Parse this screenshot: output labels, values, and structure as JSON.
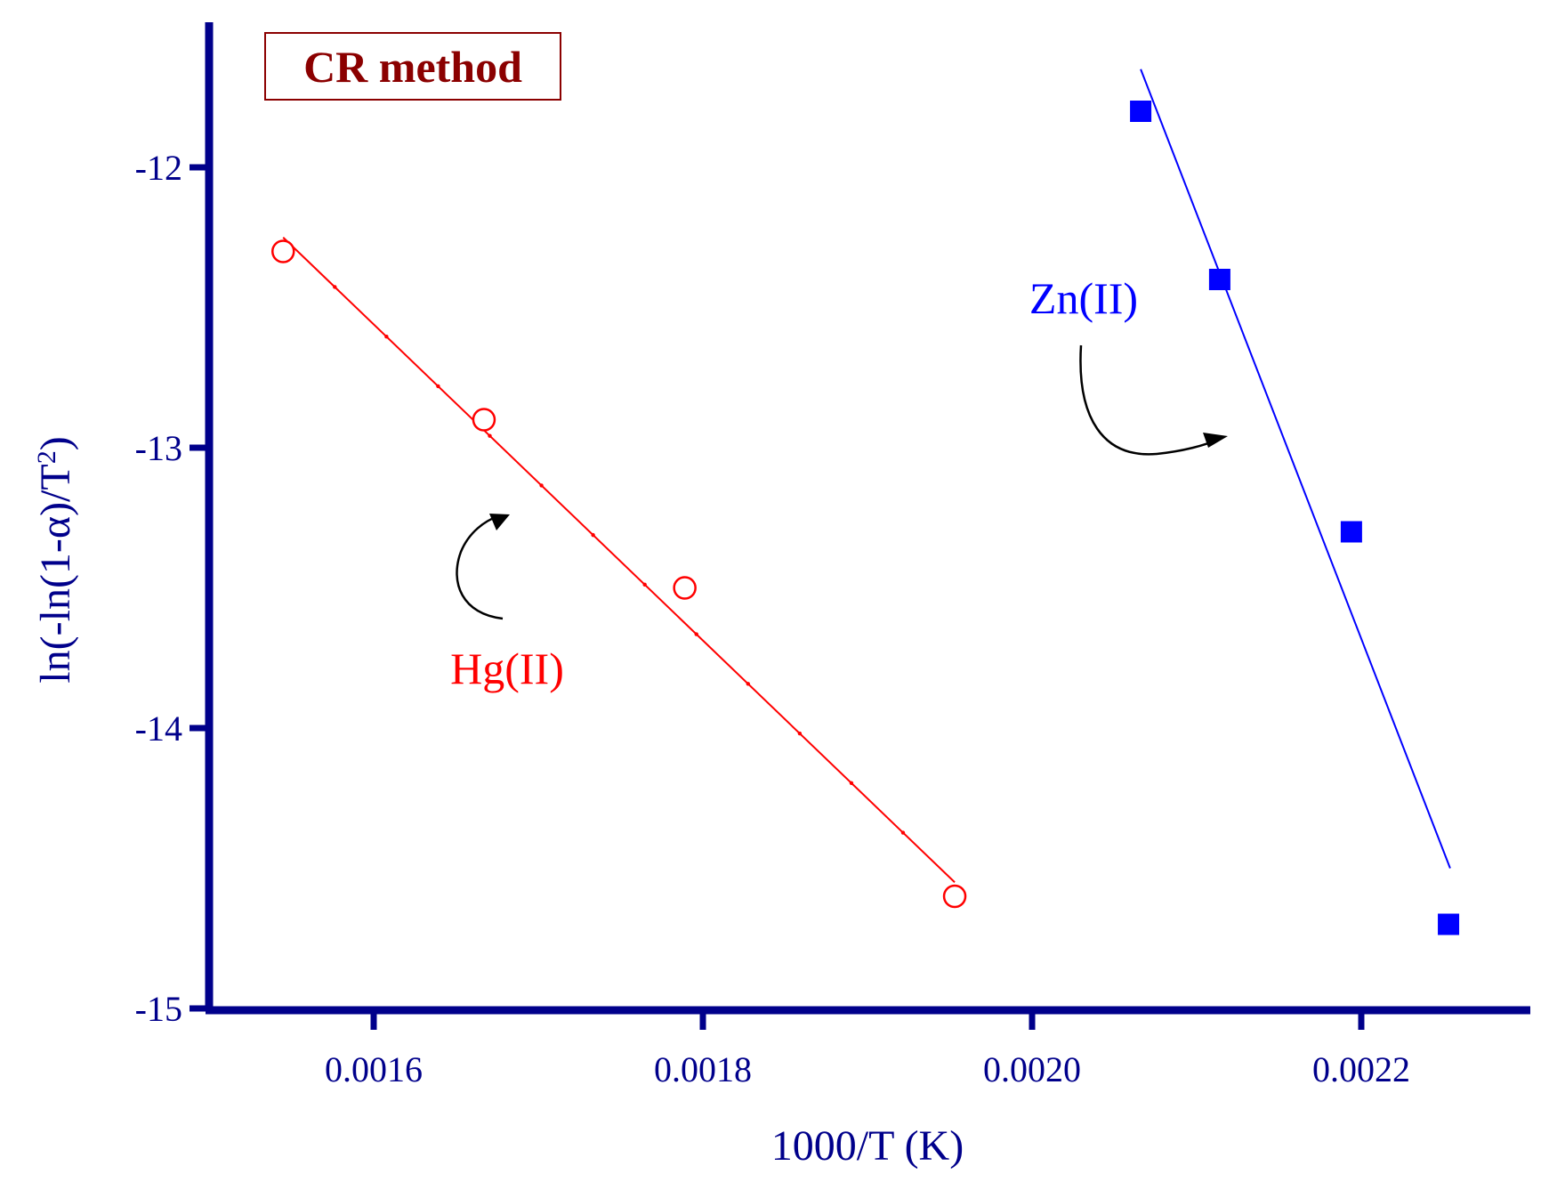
{
  "chart_data": {
    "type": "scatter",
    "title": "CR method",
    "xlabel": "1000/T (K)",
    "ylabel": "ln(-ln(1-α)/T",
    "ylabel_sup": "2",
    "ylabel_tail": ")",
    "xlim": [
      0.0015,
      0.0023
    ],
    "ylim": [
      -15,
      -11.5
    ],
    "xticks": [
      0.0016,
      0.0018,
      0.002,
      0.0022
    ],
    "xtick_labels": [
      "0.0016",
      "0.0018",
      "0.0020",
      "0.0022"
    ],
    "yticks": [
      -12,
      -13,
      -14,
      -15
    ],
    "ytick_labels": [
      "-12",
      "-13",
      "-14",
      "-15"
    ],
    "grid": false,
    "colors": {
      "axis": "#00008b",
      "title": "#8b0000",
      "hg": "#ff0000",
      "zn": "#0000ff",
      "arrow": "#000000"
    },
    "series": [
      {
        "name": "Hg(II)",
        "marker": "open-circle",
        "x": [
          0.001545,
          0.001667,
          0.001789,
          0.001953
        ],
        "y": [
          -12.3,
          -12.9,
          -13.5,
          -14.6
        ],
        "fit": {
          "x": [
            0.001545,
            0.001953
          ],
          "y": [
            -12.25,
            -14.55
          ]
        }
      },
      {
        "name": "Zn(II)",
        "marker": "filled-square",
        "x": [
          0.002066,
          0.002114,
          0.002194,
          0.002253
        ],
        "y": [
          -11.8,
          -12.4,
          -13.3,
          -14.7
        ],
        "fit": {
          "x": [
            0.002066,
            0.002254
          ],
          "y": [
            -11.65,
            -14.5
          ]
        }
      }
    ]
  }
}
